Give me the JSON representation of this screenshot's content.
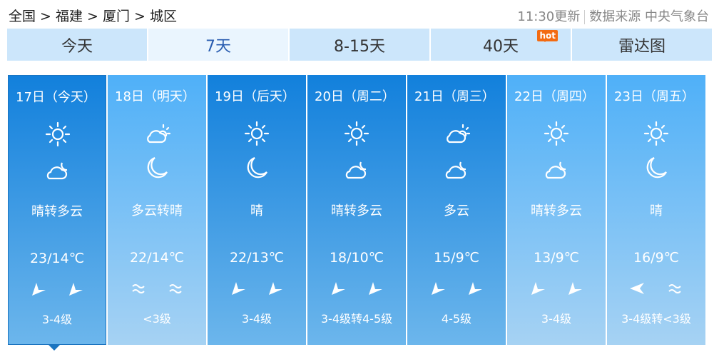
{
  "breadcrumb": "全国 > 福建 > 厦门 > 城区",
  "update": {
    "time": "11:30更新",
    "source": "数据来源 中央气象台"
  },
  "tabs": [
    {
      "label": "今天"
    },
    {
      "label": "7天",
      "active": true
    },
    {
      "label": "8-15天"
    },
    {
      "label": "40天",
      "badge": "hot"
    },
    {
      "label": "雷达图"
    }
  ],
  "colors": {
    "dark_top": "#1280dc",
    "light_top": "#4fb0f8",
    "hot": "#f36b12"
  },
  "days": [
    {
      "date": "17日（今天）",
      "day_icon": "sun",
      "night_icon": "cloud-moon",
      "desc": "晴转多云",
      "temp": "23/14℃",
      "wind": [
        "arrow",
        "arrow"
      ],
      "level": "3-4级",
      "style": "dark",
      "selected": true
    },
    {
      "date": "18日（明天）",
      "day_icon": "cloud-sun",
      "night_icon": "moon",
      "desc": "多云转晴",
      "temp": "22/14℃",
      "wind": [
        "wave",
        "wave"
      ],
      "level": "<3级",
      "style": "light"
    },
    {
      "date": "19日（后天）",
      "day_icon": "sun",
      "night_icon": "moon",
      "desc": "晴",
      "temp": "22/13℃",
      "wind": [
        "arrow",
        "arrow"
      ],
      "level": "3-4级",
      "style": "dark"
    },
    {
      "date": "20日（周二）",
      "day_icon": "sun",
      "night_icon": "cloud-moon",
      "desc": "晴转多云",
      "temp": "18/10℃",
      "wind": [
        "arrow",
        "arrow"
      ],
      "level": "3-4级转4-5级",
      "style": "dark"
    },
    {
      "date": "21日（周三）",
      "day_icon": "cloud-sun",
      "night_icon": "cloud-moon",
      "desc": "多云",
      "temp": "15/9℃",
      "wind": [
        "arrow",
        "arrow"
      ],
      "level": "4-5级",
      "style": "dark"
    },
    {
      "date": "22日（周四）",
      "day_icon": "sun",
      "night_icon": "cloud-moon",
      "desc": "晴转多云",
      "temp": "13/9℃",
      "wind": [
        "arrow",
        "arrow"
      ],
      "level": "3-4级",
      "style": "light"
    },
    {
      "date": "23日（周五）",
      "day_icon": "sun",
      "night_icon": "moon",
      "desc": "晴",
      "temp": "16/9℃",
      "wind": [
        "arrow-left",
        "wave"
      ],
      "level": "3-4级转<3级",
      "style": "light"
    }
  ]
}
